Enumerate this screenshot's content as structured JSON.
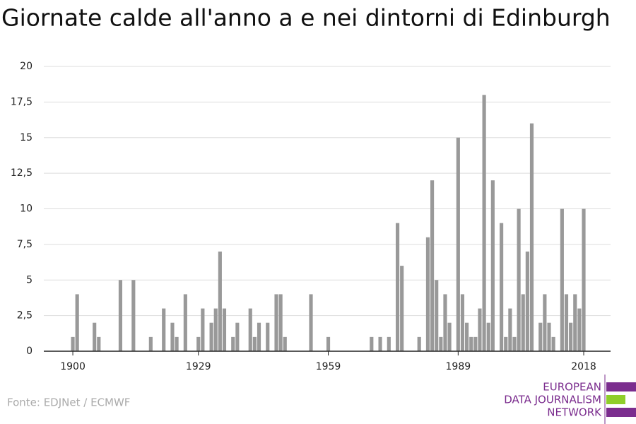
{
  "chart_data": {
    "type": "bar",
    "title": "Giornate calde all'anno a e nei dintorni di Edinburgh",
    "x": [
      1900,
      1901,
      1905,
      1906,
      1911,
      1914,
      1918,
      1921,
      1923,
      1924,
      1926,
      1929,
      1930,
      1932,
      1933,
      1934,
      1935,
      1937,
      1938,
      1941,
      1942,
      1943,
      1945,
      1947,
      1948,
      1949,
      1955,
      1959,
      1969,
      1971,
      1973,
      1975,
      1976,
      1980,
      1982,
      1983,
      1984,
      1985,
      1986,
      1987,
      1989,
      1990,
      1991,
      1992,
      1993,
      1994,
      1995,
      1996,
      1997,
      1999,
      2000,
      2001,
      2002,
      2003,
      2004,
      2005,
      2006,
      2008,
      2009,
      2010,
      2011,
      2013,
      2014,
      2015,
      2016,
      2017,
      2018
    ],
    "values": [
      1,
      4,
      2,
      1,
      5,
      5,
      1,
      3,
      2,
      1,
      4,
      1,
      3,
      2,
      3,
      7,
      3,
      1,
      2,
      3,
      1,
      2,
      2,
      4,
      4,
      1,
      4,
      1,
      1,
      1,
      1,
      9,
      6,
      1,
      8,
      12,
      5,
      1,
      4,
      2,
      15,
      4,
      2,
      1,
      1,
      3,
      18,
      2,
      12,
      9,
      1,
      3,
      1,
      10,
      4,
      7,
      16,
      2,
      4,
      2,
      1,
      10,
      4,
      2,
      4,
      3,
      10
    ],
    "color": "#999999",
    "xlim": [
      1893.3,
      2024.2
    ],
    "xticks": [
      1900,
      1929,
      1959,
      1989,
      2018
    ],
    "ylim": [
      0,
      20
    ],
    "yticks": [
      0,
      {
        "value": 2.5,
        "label": "2,5"
      },
      5,
      {
        "value": 7.5,
        "label": "7,5"
      },
      10,
      {
        "value": 12.5,
        "label": "12,5"
      },
      15,
      {
        "value": 17.5,
        "label": "17,5"
      },
      20
    ],
    "grid": true
  },
  "source": "Fonte: EDJNet / ECMWF",
  "logo": [
    "EUROPEAN",
    "DATA JOURNALISM",
    "NETWORK"
  ]
}
